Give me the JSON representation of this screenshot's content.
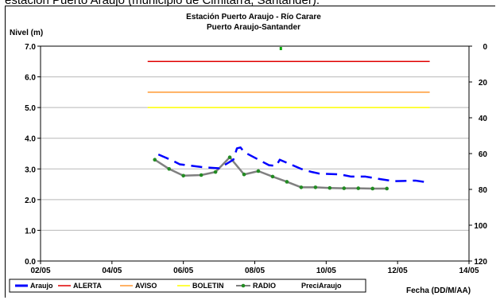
{
  "page": {
    "caption": "estación Puerto Araujo (municipio de Cimitarra, Santander)."
  },
  "chart_data": {
    "type": "line",
    "title": "Estación Puerto Araujo - Río Carare",
    "subtitle": "Puerto Araujo-Santander",
    "ylabel": "Nivel (m)",
    "xlabel": "Fecha (DD/M/AA)",
    "ylim": [
      0,
      7
    ],
    "y2lim": [
      0,
      120
    ],
    "y2_inverted": true,
    "xlim": [
      2,
      14
    ],
    "x_ticks": [
      "02/05",
      "04/05",
      "06/05",
      "08/05",
      "10/05",
      "12/05",
      "14/05"
    ],
    "y_ticks": [
      "0.0",
      "1.0",
      "2.0",
      "3.0",
      "4.0",
      "5.0",
      "6.0",
      "7.0"
    ],
    "y2_ticks": [
      "0",
      "20",
      "40",
      "60",
      "80",
      "100",
      "120"
    ],
    "grid": "horizontal",
    "legend_position": "bottom",
    "colors": {
      "araujo": "#0000ff",
      "alerta": "#e00000",
      "aviso": "#ff9933",
      "boletin": "#ffff00",
      "radio": "#808080",
      "radio_marker": "#228B22",
      "preci": "#00aa00"
    },
    "series": [
      {
        "name": "Araujo",
        "style": "dashed",
        "x": [
          5.3,
          5.5,
          5.7,
          5.9,
          6.6,
          7.0,
          7.4,
          7.5,
          7.6,
          7.7,
          8.4,
          8.6,
          8.7,
          9.3,
          9.6,
          9.8,
          10.4,
          10.7,
          11.1,
          11.5,
          11.9,
          12.5,
          12.8
        ],
        "y": [
          3.47,
          3.37,
          3.27,
          3.15,
          3.05,
          3.02,
          3.3,
          3.67,
          3.7,
          3.55,
          3.12,
          3.1,
          3.3,
          3.0,
          2.9,
          2.85,
          2.82,
          2.75,
          2.75,
          2.67,
          2.6,
          2.62,
          2.57
        ]
      },
      {
        "name": "ALERTA",
        "x": [
          5.0,
          12.9
        ],
        "y": [
          6.5,
          6.5
        ]
      },
      {
        "name": "AVISO",
        "x": [
          5.0,
          12.9
        ],
        "y": [
          5.5,
          5.5
        ]
      },
      {
        "name": "BOLETIN",
        "x": [
          5.0,
          12.9
        ],
        "y": [
          5.0,
          5.0
        ]
      },
      {
        "name": "RADIO",
        "markers": true,
        "x": [
          5.2,
          5.6,
          6.0,
          6.5,
          6.9,
          7.3,
          7.7,
          8.1,
          8.5,
          8.9,
          9.3,
          9.7,
          10.1,
          10.5,
          10.9,
          11.3,
          11.7
        ],
        "y": [
          3.3,
          3.0,
          2.78,
          2.8,
          2.9,
          3.38,
          2.82,
          2.93,
          2.75,
          2.58,
          2.4,
          2.4,
          2.38,
          2.37,
          2.37,
          2.36,
          2.36
        ]
      },
      {
        "name": "PreciAraujo",
        "axis": "secondary",
        "x": [
          8.73
        ],
        "y": [
          0
        ]
      }
    ]
  }
}
